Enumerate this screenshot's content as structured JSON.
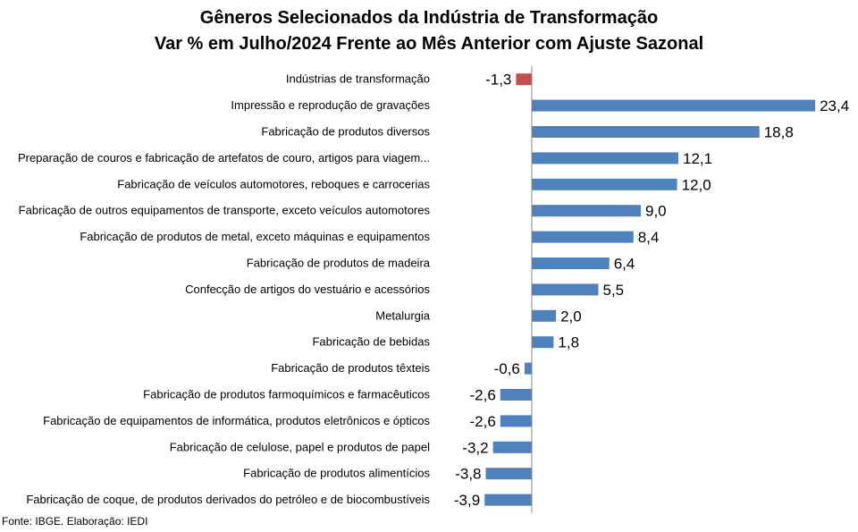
{
  "chart_data": {
    "type": "bar",
    "orientation": "horizontal",
    "title": "Gêneros Selecionados da Indústria de Transformação",
    "subtitle": "Var % em Julho/2024 Frente ao Mês Anterior com Ajuste Sazonal",
    "categories": [
      "Indústrias de transformação",
      "Impressão e reprodução de gravações",
      "Fabricação de produtos diversos",
      "Preparação de couros e fabricação de artefatos de couro, artigos para viagem...",
      "Fabricação de veículos automotores, reboques e carrocerias",
      "Fabricação de outros equipamentos de transporte, exceto veículos automotores",
      "Fabricação de produtos de metal, exceto máquinas e equipamentos",
      "Fabricação de produtos de madeira",
      "Confecção de artigos do vestuário e acessórios",
      "Metalurgia",
      "Fabricação de bebidas",
      "Fabricação de produtos têxteis",
      "Fabricação de produtos farmoquímicos e farmacêuticos",
      "Fabricação de equipamentos de informática, produtos eletrônicos e ópticos",
      "Fabricação de celulose, papel e produtos de papel",
      "Fabricação de produtos alimentícios",
      "Fabricação de coque, de produtos derivados do petróleo e de biocombustíveis"
    ],
    "values": [
      -1.3,
      23.4,
      18.8,
      12.1,
      12.0,
      9.0,
      8.4,
      6.4,
      5.5,
      2.0,
      1.8,
      -0.6,
      -2.6,
      -2.6,
      -3.2,
      -3.8,
      -3.9
    ],
    "data_labels": [
      "-1,3",
      "23,4",
      "18,8",
      "12,1",
      "12,0",
      "9,0",
      "8,4",
      "6,4",
      "5,5",
      "2,0",
      "1,8",
      "-0,6",
      "-2,6",
      "-2,6",
      "-3,2",
      "-3,8",
      "-3,9"
    ],
    "colors": {
      "highlight": "#c0504d",
      "default": "#4f81bd"
    },
    "highlight_index": 0,
    "xlim": [
      -4.8,
      24.7
    ],
    "grid": false,
    "legend": "none"
  },
  "source": "Fonte: IBGE. Elaboração: IEDI"
}
